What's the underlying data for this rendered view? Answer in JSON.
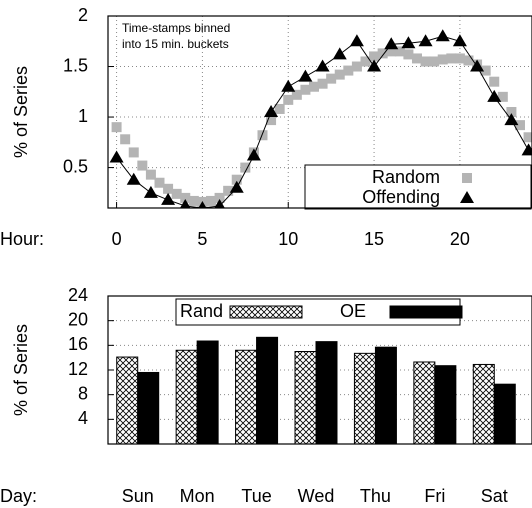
{
  "chart_data": [
    {
      "type": "scatter",
      "ylabel": "% of Series",
      "xlabel": "Hour:",
      "annotation": [
        "Time-stamps binned",
        "into 15 min. buckets"
      ],
      "xlim": [
        -0.5,
        24.2
      ],
      "ylim": [
        0.1,
        2
      ],
      "xticks": [
        0,
        5,
        10,
        15,
        20
      ],
      "yticks": [
        0.5,
        1,
        1.5,
        2
      ],
      "grid": true,
      "legend": "lower right",
      "series": [
        {
          "name": "Random",
          "color": "#b4b4b4",
          "marker": "square",
          "line": false,
          "x": [
            0,
            0.5,
            1,
            1.5,
            2,
            2.5,
            3,
            3.5,
            4,
            4.5,
            5,
            5.5,
            6,
            6.5,
            7,
            7.5,
            8,
            8.5,
            9,
            9.5,
            10,
            10.5,
            11,
            11.5,
            12,
            12.5,
            13,
            13.5,
            14,
            14.5,
            15,
            15.5,
            16,
            16.5,
            17,
            17.5,
            18,
            18.5,
            19,
            19.5,
            20,
            20.5,
            21,
            21.5,
            22,
            22.5,
            23,
            23.5,
            24
          ],
          "values": [
            0.9,
            0.78,
            0.65,
            0.52,
            0.43,
            0.35,
            0.29,
            0.24,
            0.2,
            0.17,
            0.16,
            0.17,
            0.2,
            0.27,
            0.38,
            0.5,
            0.65,
            0.82,
            0.97,
            1.08,
            1.17,
            1.22,
            1.27,
            1.3,
            1.33,
            1.38,
            1.42,
            1.46,
            1.5,
            1.55,
            1.6,
            1.63,
            1.65,
            1.65,
            1.62,
            1.58,
            1.55,
            1.55,
            1.57,
            1.58,
            1.58,
            1.56,
            1.52,
            1.46,
            1.35,
            1.2,
            1.05,
            0.92,
            0.8
          ]
        },
        {
          "name": "Offending",
          "color": "#000000",
          "marker": "triangle",
          "line": true,
          "x": [
            0,
            1,
            2,
            3,
            4,
            5,
            6,
            7,
            8,
            9,
            10,
            11,
            12,
            13,
            14,
            15,
            16,
            17,
            18,
            19,
            20,
            21,
            22,
            23,
            24
          ],
          "values": [
            0.6,
            0.38,
            0.25,
            0.18,
            0.12,
            0.1,
            0.12,
            0.3,
            0.62,
            1.05,
            1.3,
            1.4,
            1.5,
            1.62,
            1.75,
            1.5,
            1.72,
            1.73,
            1.75,
            1.8,
            1.75,
            1.5,
            1.2,
            0.97,
            0.67
          ]
        }
      ]
    },
    {
      "type": "bar",
      "ylabel": "% of Series",
      "xlabel": "Day:",
      "categories": [
        "Sun",
        "Mon",
        "Tue",
        "Wed",
        "Thu",
        "Fri",
        "Sat"
      ],
      "ylim": [
        0,
        24
      ],
      "yticks": [
        4,
        8,
        12,
        16,
        20,
        24
      ],
      "grid": true,
      "legend": "upper center",
      "series": [
        {
          "name": "Rand",
          "color": "#000000",
          "pattern": "crosshatch",
          "values": [
            14.1,
            15.2,
            15.2,
            15.0,
            14.7,
            13.3,
            12.9
          ]
        },
        {
          "name": "OE",
          "color": "#000000",
          "pattern": "solid",
          "values": [
            11.6,
            16.7,
            17.3,
            16.6,
            15.7,
            12.7,
            9.7
          ]
        }
      ]
    }
  ]
}
